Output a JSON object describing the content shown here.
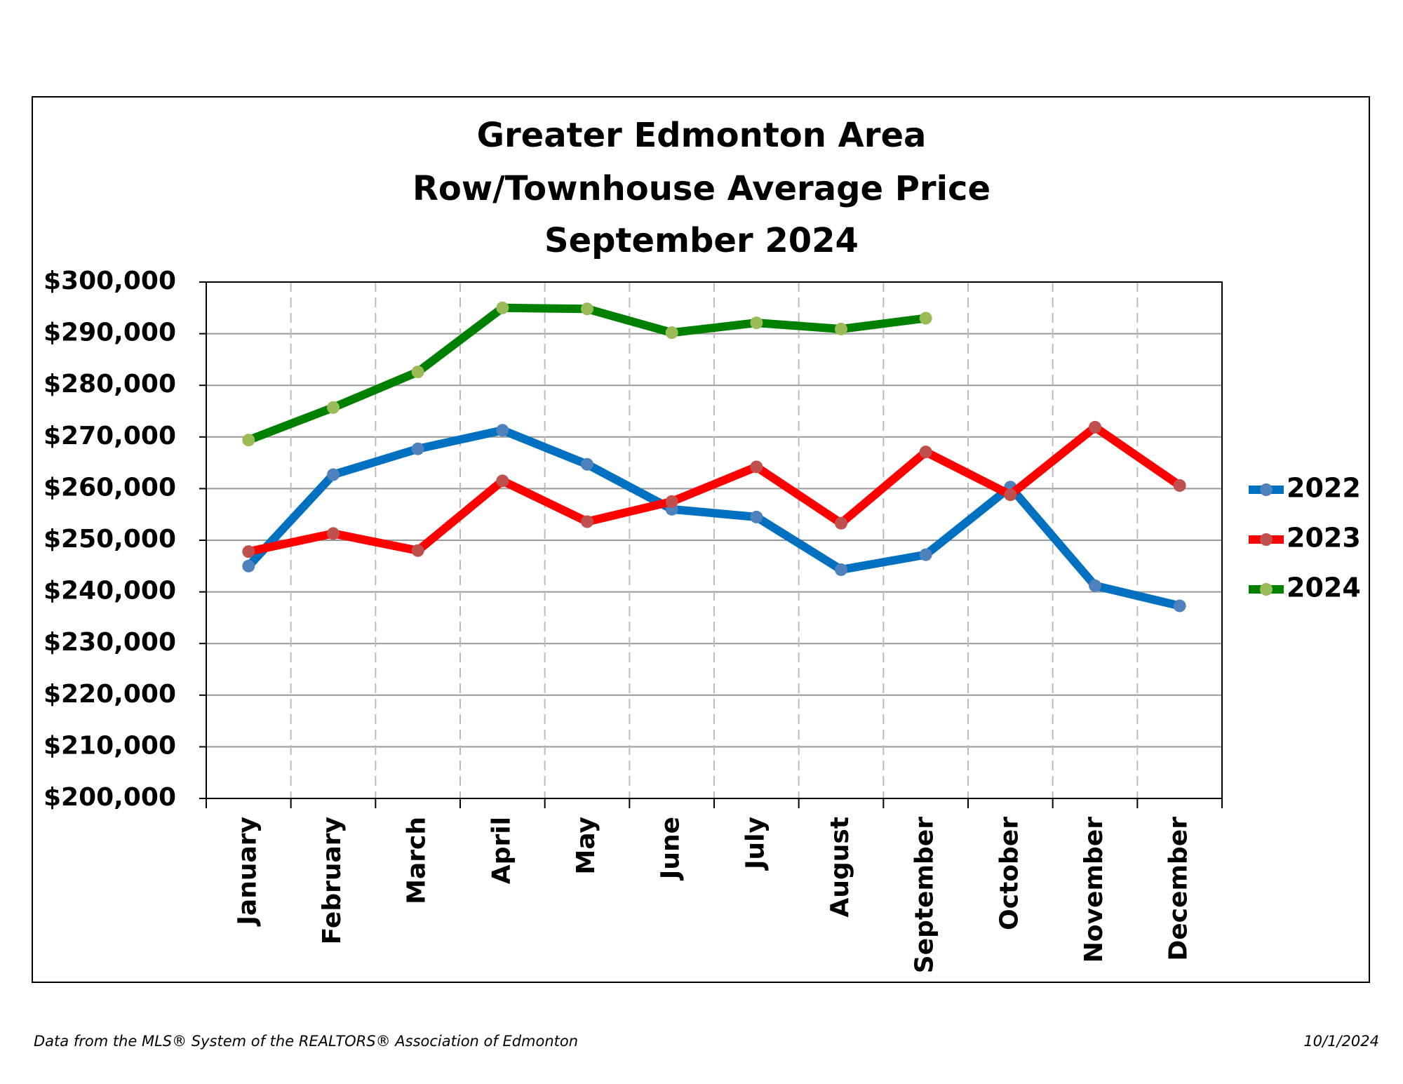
{
  "chart_data": {
    "type": "line",
    "title": [
      "Greater Edmonton Area",
      "Row/Townhouse Average Price",
      "September 2024"
    ],
    "categories": [
      "January",
      "February",
      "March",
      "April",
      "May",
      "June",
      "July",
      "August",
      "September",
      "October",
      "November",
      "December"
    ],
    "series": [
      {
        "name": "2022",
        "color": "#0070c0",
        "marker_color": "#4f81bd",
        "values": [
          245000,
          262700,
          267700,
          271300,
          264700,
          256000,
          254500,
          244300,
          247200,
          260300,
          241200,
          237300
        ]
      },
      {
        "name": "2023",
        "color": "#ff0000",
        "marker_color": "#c0504d",
        "values": [
          247800,
          251300,
          248000,
          261500,
          253600,
          257500,
          264200,
          253300,
          267100,
          258800,
          271900,
          260600
        ]
      },
      {
        "name": "2024",
        "color": "#008000",
        "marker_color": "#9bbb59",
        "values": [
          269400,
          275700,
          282600,
          295000,
          294800,
          290200,
          292100,
          290900,
          293000,
          null,
          null,
          null
        ]
      }
    ],
    "ylim": [
      200000,
      300000
    ],
    "yticks": [
      {
        "value": 200000,
        "label": "$200,000"
      },
      {
        "value": 210000,
        "label": "$210,000"
      },
      {
        "value": 220000,
        "label": "$220,000"
      },
      {
        "value": 230000,
        "label": "$230,000"
      },
      {
        "value": 240000,
        "label": "$240,000"
      },
      {
        "value": 250000,
        "label": "$250,000"
      },
      {
        "value": 260000,
        "label": "$260,000"
      },
      {
        "value": 270000,
        "label": "$270,000"
      },
      {
        "value": 280000,
        "label": "$280,000"
      },
      {
        "value": 290000,
        "label": "$290,000"
      },
      {
        "value": 300000,
        "label": "$300,000"
      }
    ],
    "grid": true,
    "legend": "right",
    "source": "Data from the MLS® System of the REALTORS® Association of Edmonton",
    "date": "10/1/2024"
  }
}
